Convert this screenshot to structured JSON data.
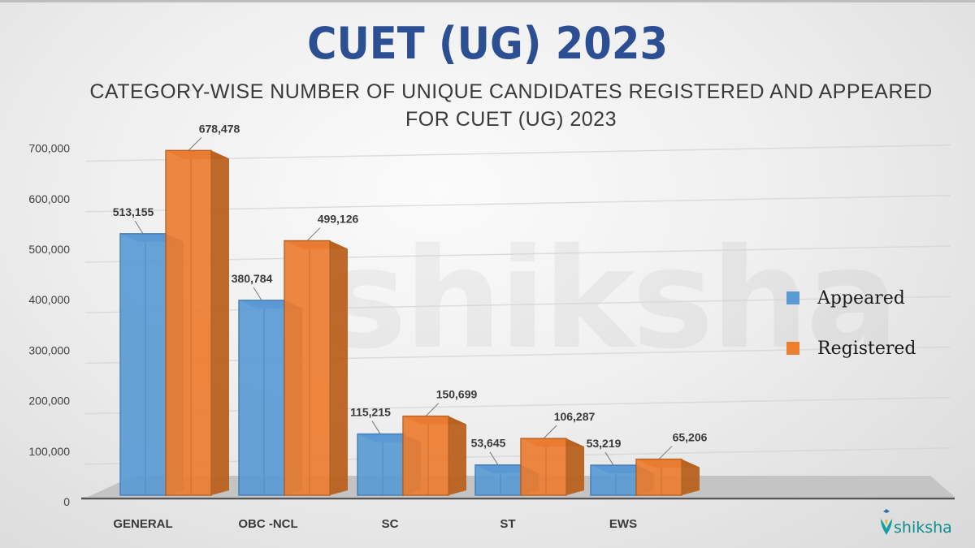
{
  "header": {
    "title": "CUET (UG) 2023",
    "subtitle_line1": "CATEGORY-WISE  NUMBER OF UNIQUE CANDIDATES REGISTERED AND APPEARED",
    "subtitle_line2": "FOR CUET (UG) 2023"
  },
  "watermark": "shiksha",
  "legend": {
    "items": [
      {
        "label": "Appeared",
        "color": "#5b9bd5"
      },
      {
        "label": "Registered",
        "color": "#ed7d31"
      }
    ]
  },
  "logo": {
    "text": "shiksha"
  },
  "colors": {
    "appeared": "#5b9bd5",
    "appeared_side": "#3f7ab8",
    "registered": "#ed7d31",
    "registered_side": "#b9611f",
    "title": "#2c4f93",
    "floor": "#c4c4c4"
  },
  "chart_data": {
    "type": "bar",
    "style": "3d-clustered-column",
    "title": "CUET (UG) 2023",
    "subtitle": "CATEGORY-WISE NUMBER OF UNIQUE CANDIDATES REGISTERED AND APPEARED FOR CUET (UG) 2023",
    "categories": [
      "GENERAL",
      "OBC -NCL",
      "SC",
      "ST",
      "EWS"
    ],
    "series": [
      {
        "name": "Appeared",
        "values": [
          513155,
          380784,
          115215,
          53645,
          53219
        ]
      },
      {
        "name": "Registered",
        "values": [
          678478,
          499126,
          150699,
          106287,
          65206
        ]
      }
    ],
    "value_labels": {
      "Appeared": [
        "513,155",
        "380,784",
        "115,215",
        "53,645",
        "53,219"
      ],
      "Registered": [
        "678,478",
        "499,126",
        "150,699",
        "106,287",
        "65,206"
      ]
    },
    "yticks": [
      "0",
      "100,000",
      "200,000",
      "300,000",
      "400,000",
      "500,000",
      "600,000",
      "700,000"
    ],
    "ylim": [
      0,
      700000
    ],
    "xlabel": "",
    "ylabel": "",
    "grid": true,
    "legend_position": "right"
  }
}
